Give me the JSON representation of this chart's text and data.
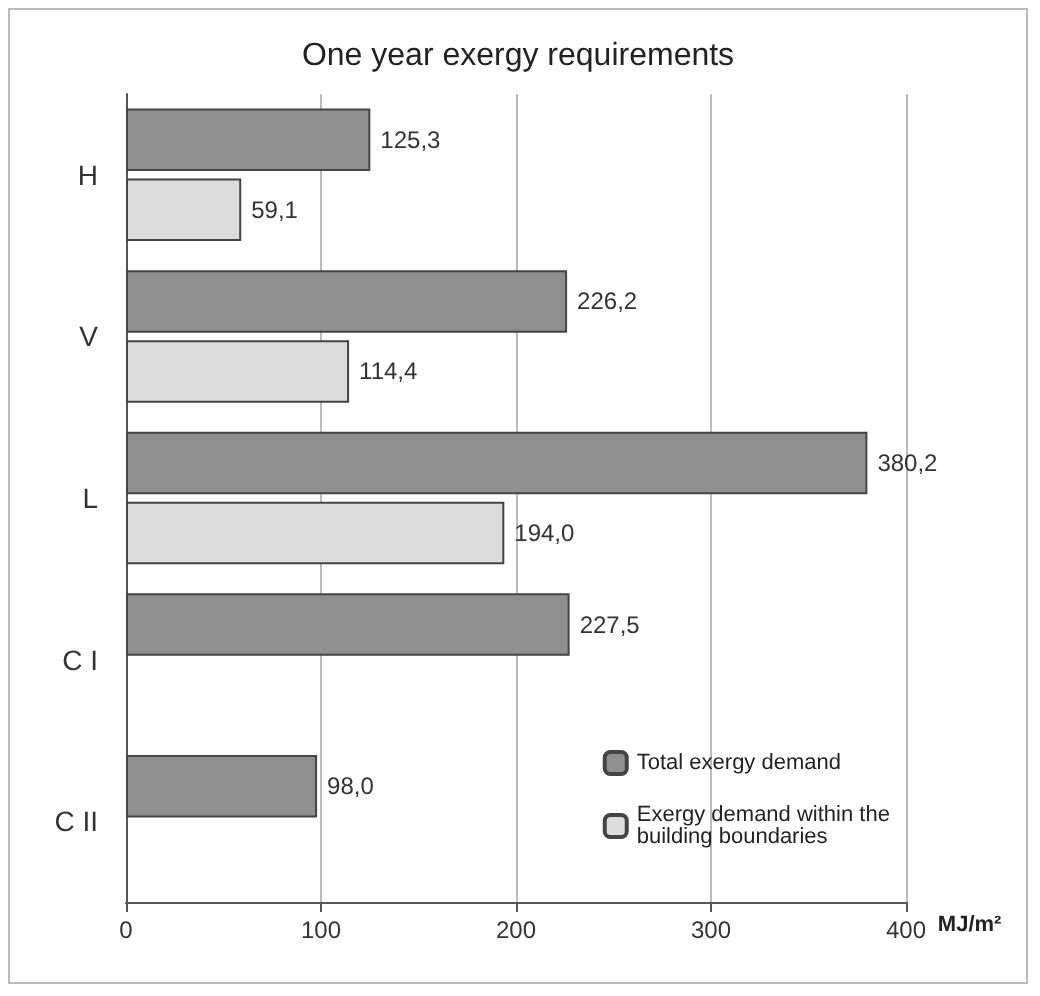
{
  "chart_data": {
    "type": "bar",
    "orientation": "horizontal",
    "title": "One year exergy requirements",
    "xlabel": "MJ/m²",
    "categories": [
      "H",
      "V",
      "L",
      "C I",
      "C II"
    ],
    "series": [
      {
        "name": "Total exergy demand",
        "color": "#8f8f8f",
        "values": [
          125.3,
          226.2,
          380.2,
          227.5,
          98.0
        ],
        "value_labels": [
          "125,3",
          "226,2",
          "380,2",
          "227,5",
          "98,0"
        ]
      },
      {
        "name": "Exergy demand within the building boundaries",
        "color": "#dcdcdc",
        "values": [
          59.1,
          114.4,
          194.0,
          null,
          null
        ],
        "value_labels": [
          "59,1",
          "114,4",
          "194,0",
          null,
          null
        ]
      }
    ],
    "xlim": [
      0,
      400
    ],
    "xticks": [
      0,
      100,
      200,
      300,
      400
    ],
    "grid": "x",
    "legend": "bottom right"
  }
}
